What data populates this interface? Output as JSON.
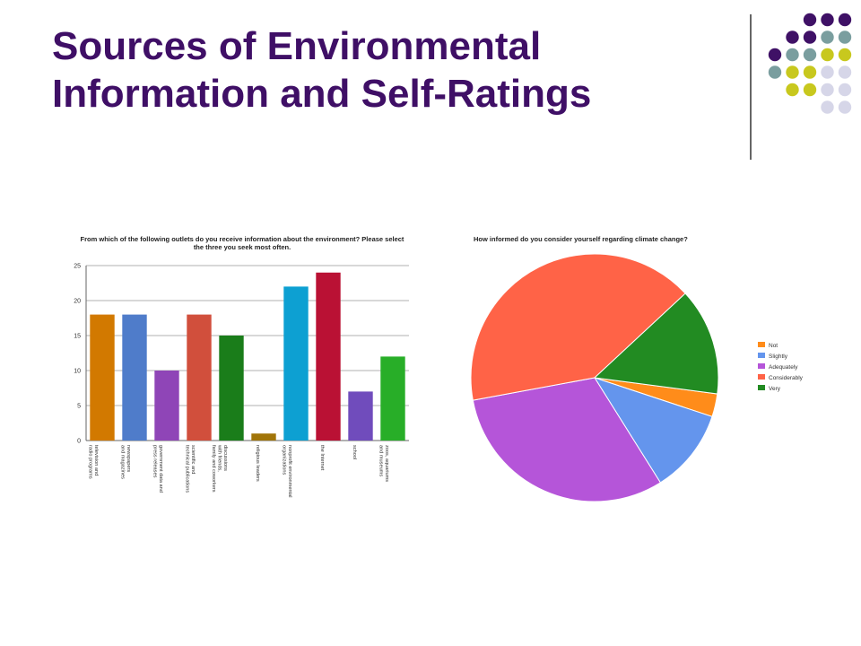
{
  "slide": {
    "title_line1": "Sources of Environmental",
    "title_line2": "Information and Self-Ratings"
  },
  "decor": {
    "palette": {
      "purple": "#3f1166",
      "teal": "#7a9e9f",
      "olive": "#c8c81e",
      "lavender": "#d6d6e8"
    },
    "dot_rows": [
      [
        "purple",
        "purple",
        "purple"
      ],
      [
        "purple",
        "purple",
        "teal",
        "teal"
      ],
      [
        "purple",
        "teal",
        "teal",
        "olive",
        "olive"
      ],
      [
        "teal",
        "olive",
        "olive",
        "lavender",
        "lavender"
      ],
      [
        "olive",
        "olive",
        "lavender",
        "lavender"
      ],
      [
        "lavender",
        "lavender"
      ]
    ]
  },
  "chart_data": [
    {
      "type": "bar",
      "title": "From which of the following outlets do you receive information about the environment? Please select the three you seek most often.",
      "categories": [
        [
          "television and",
          "radio programs"
        ],
        [
          "newspapers",
          "and magazines"
        ],
        [
          "government data and",
          "press releases"
        ],
        [
          "scientific and",
          "technical publications"
        ],
        [
          "discussions",
          "with friends,",
          "family and coworkers"
        ],
        [
          "religious leaders"
        ],
        [
          "nonprofit environmental",
          "organizations"
        ],
        [
          "the Internet"
        ],
        [
          "school"
        ],
        [
          "zoos, aquariums",
          "and museums"
        ]
      ],
      "values": [
        18,
        18,
        10,
        18,
        15,
        1,
        22,
        24,
        7,
        12
      ],
      "colors": [
        "#f08a00",
        "#5b8ee6",
        "#a34fd1",
        "#ee5a45",
        "#1e8f1e",
        "#b8860b",
        "#0fb7f0",
        "#d4143c",
        "#8057d6",
        "#2ec62e"
      ],
      "ylim": [
        0,
        25
      ],
      "yticks": [
        "0",
        "5",
        "10",
        "15",
        "20",
        "25"
      ],
      "grid": true
    },
    {
      "type": "pie",
      "title": "How informed do you consider yourself regarding climate change?",
      "labels": [
        "Not",
        "Slightly",
        "Adequately",
        "Considerably",
        "Very"
      ],
      "values": [
        3,
        11,
        31,
        41,
        14
      ],
      "colors": [
        "#ff8c1a",
        "#6495ed",
        "#b555d9",
        "#ff6347",
        "#228b22"
      ],
      "legend": "right"
    }
  ]
}
